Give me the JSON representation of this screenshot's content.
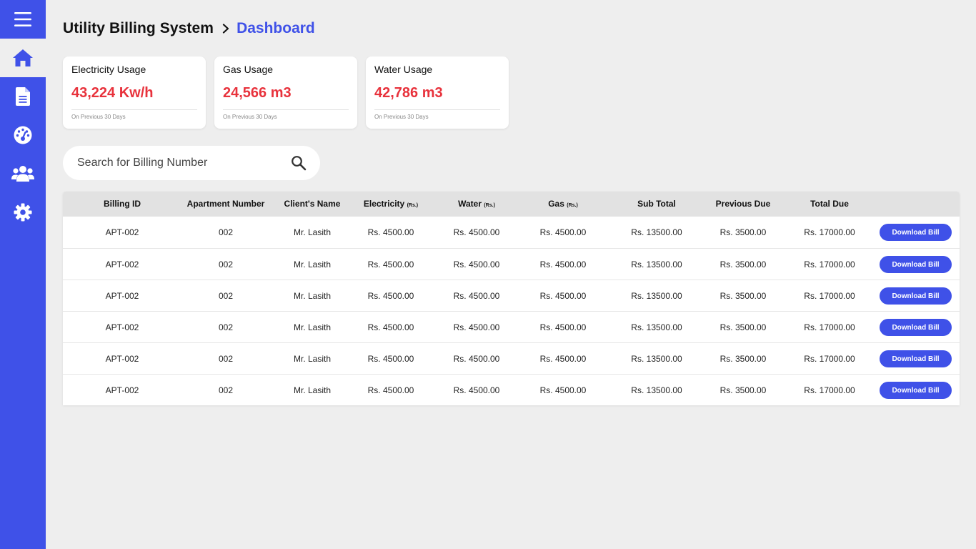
{
  "sidebar": {
    "items": [
      {
        "icon": "menu-icon",
        "label": ""
      },
      {
        "icon": "home-icon",
        "label": "",
        "active": true
      },
      {
        "icon": "document-icon",
        "label": ""
      },
      {
        "icon": "gauge-icon",
        "label": ""
      },
      {
        "icon": "users-icon",
        "label": ""
      },
      {
        "icon": "gear-icon",
        "label": ""
      }
    ]
  },
  "header": {
    "app_title": "Utility Billing System",
    "current_page": "Dashboard"
  },
  "cards": [
    {
      "title": "Electricity Usage",
      "value": "43,224 Kw/h",
      "note": "On Previous 30 Days"
    },
    {
      "title": "Gas Usage",
      "value": "24,566 m3",
      "note": "On Previous 30 Days"
    },
    {
      "title": "Water Usage",
      "value": "42,786 m3",
      "note": "On Previous 30 Days"
    }
  ],
  "search": {
    "placeholder": "Search for Billing Number",
    "value": ""
  },
  "table": {
    "columns": [
      {
        "label": "Billing ID",
        "unit": ""
      },
      {
        "label": "Apartment Number",
        "unit": ""
      },
      {
        "label": "Client's Name",
        "unit": ""
      },
      {
        "label": "Electricity",
        "unit": "(Rs.)"
      },
      {
        "label": "Water",
        "unit": "(Rs.)"
      },
      {
        "label": "Gas",
        "unit": "(Rs.)"
      },
      {
        "label": "Sub Total",
        "unit": ""
      },
      {
        "label": "Previous Due",
        "unit": ""
      },
      {
        "label": "Total Due",
        "unit": ""
      }
    ],
    "rows": [
      {
        "billing_id": "APT-002",
        "apartment": "002",
        "client": "Mr. Lasith",
        "electricity": "Rs. 4500.00",
        "water": "Rs. 4500.00",
        "gas": "Rs. 4500.00",
        "sub_total": "Rs. 13500.00",
        "previous_due": "Rs. 3500.00",
        "total_due": "Rs. 17000.00",
        "action": "Download Bill"
      },
      {
        "billing_id": "APT-002",
        "apartment": "002",
        "client": "Mr. Lasith",
        "electricity": "Rs. 4500.00",
        "water": "Rs. 4500.00",
        "gas": "Rs. 4500.00",
        "sub_total": "Rs. 13500.00",
        "previous_due": "Rs. 3500.00",
        "total_due": "Rs. 17000.00",
        "action": "Download Bill"
      },
      {
        "billing_id": "APT-002",
        "apartment": "002",
        "client": "Mr. Lasith",
        "electricity": "Rs. 4500.00",
        "water": "Rs. 4500.00",
        "gas": "Rs. 4500.00",
        "sub_total": "Rs. 13500.00",
        "previous_due": "Rs. 3500.00",
        "total_due": "Rs. 17000.00",
        "action": "Download Bill"
      },
      {
        "billing_id": "APT-002",
        "apartment": "002",
        "client": "Mr. Lasith",
        "electricity": "Rs. 4500.00",
        "water": "Rs. 4500.00",
        "gas": "Rs. 4500.00",
        "sub_total": "Rs. 13500.00",
        "previous_due": "Rs. 3500.00",
        "total_due": "Rs. 17000.00",
        "action": "Download Bill"
      },
      {
        "billing_id": "APT-002",
        "apartment": "002",
        "client": "Mr. Lasith",
        "electricity": "Rs. 4500.00",
        "water": "Rs. 4500.00",
        "gas": "Rs. 4500.00",
        "sub_total": "Rs. 13500.00",
        "previous_due": "Rs. 3500.00",
        "total_due": "Rs. 17000.00",
        "action": "Download Bill"
      },
      {
        "billing_id": "APT-002",
        "apartment": "002",
        "client": "Mr. Lasith",
        "electricity": "Rs. 4500.00",
        "water": "Rs. 4500.00",
        "gas": "Rs. 4500.00",
        "sub_total": "Rs. 13500.00",
        "previous_due": "Rs. 3500.00",
        "total_due": "Rs. 17000.00",
        "action": "Download Bill"
      }
    ]
  },
  "colors": {
    "accent": "#3F51E8",
    "value_red": "#E8323C",
    "background": "#EEEEEE",
    "table_header": "#E2E2E2"
  }
}
